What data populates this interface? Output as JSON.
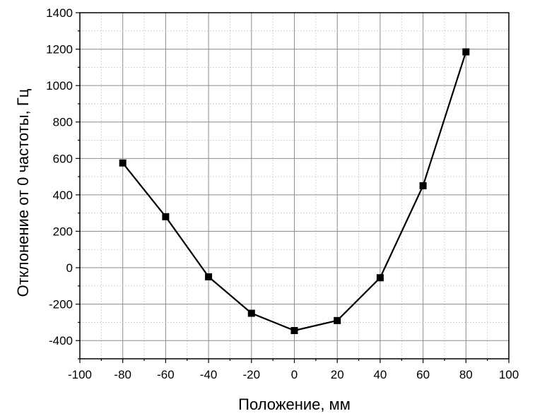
{
  "chart_data": {
    "type": "line",
    "title": "",
    "xlabel": "Положение, мм",
    "ylabel": "Отклонение от 0 частоты, Гц",
    "xlim": [
      -100,
      100
    ],
    "ylim": [
      -500,
      1400
    ],
    "x_ticks": [
      -100,
      -80,
      -60,
      -40,
      -20,
      0,
      20,
      40,
      60,
      80,
      100
    ],
    "y_ticks": [
      -400,
      -200,
      0,
      200,
      400,
      600,
      800,
      1000,
      1200,
      1400
    ],
    "x_tick_labels": [
      "-100",
      "-80",
      "-60",
      "-40",
      "-20",
      "0",
      "20",
      "40",
      "60",
      "80",
      "100"
    ],
    "y_tick_labels": [
      "-400",
      "-200",
      "0",
      "200",
      "400",
      "600",
      "800",
      "1000",
      "1200",
      "1400"
    ],
    "grid": true,
    "legend": "none",
    "series": [
      {
        "marker": "square",
        "color": "#000000",
        "x": [
          -80,
          -60,
          -40,
          -20,
          0,
          20,
          40,
          60,
          80
        ],
        "y": [
          575,
          280,
          -50,
          -250,
          -345,
          -290,
          -55,
          450,
          1185
        ]
      }
    ]
  }
}
